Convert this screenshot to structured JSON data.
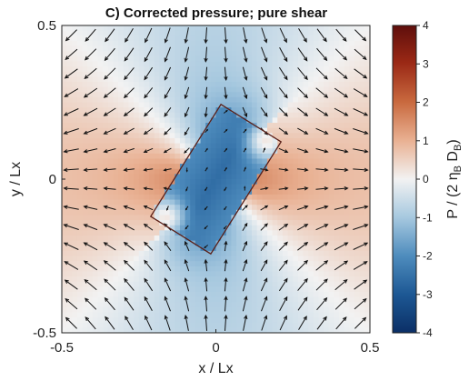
{
  "chart_data": {
    "type": "heatmap",
    "title": "C) Corrected pressure; pure shear",
    "xlabel": "x / Lx",
    "ylabel": "y / Lx",
    "xlim": [
      -0.5,
      0.5
    ],
    "ylim": [
      -0.5,
      0.5
    ],
    "xticks": [
      "-0.5",
      "0",
      "0.5"
    ],
    "yticks": [
      "-0.5",
      "0",
      "0.5"
    ],
    "colorbar": {
      "label_main": "P / (2 η",
      "label_sub1": "B",
      "label_mid": " D",
      "label_sub2": "B",
      "label_end": ")",
      "range": [
        -4,
        4
      ],
      "ticks": [
        "4",
        "3",
        "2",
        "1",
        "0",
        "-1",
        "-2",
        "-3",
        "-4"
      ],
      "colormap": "blue-white-red (diverging)",
      "low_color": "#0b2f66",
      "mid_color": "#f2f2f2",
      "high_color": "#5f0f0c"
    },
    "inclusion": {
      "shape": "rectangle",
      "center": [
        0.0,
        0.0
      ],
      "long_axis_angle_deg": 58,
      "length": 0.43,
      "width": 0.23
    },
    "field": "pressure with velocity arrows, pure shear (extension along x, shortening along y)",
    "arrow_grid_n": 16
  }
}
